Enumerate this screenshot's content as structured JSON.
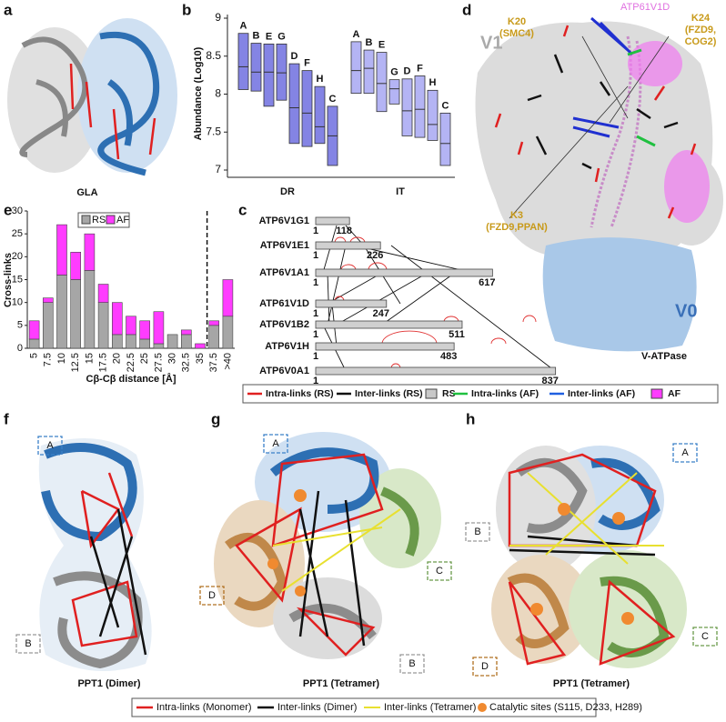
{
  "panel_labels": [
    "a",
    "b",
    "c",
    "d",
    "e",
    "f",
    "g",
    "h"
  ],
  "panel_a": {
    "caption": "GLA"
  },
  "chart_data": [
    {
      "type": "box",
      "ylabel": "Abundance (Log10)",
      "ylim": [
        7,
        9
      ],
      "yticks": [
        7,
        7.5,
        8,
        8.5,
        9
      ],
      "groups": [
        {
          "label": "DR",
          "color": "#8484e4",
          "boxes": [
            {
              "label": "A",
              "high": 8.8,
              "median": 8.36,
              "low": 8.06
            },
            {
              "label": "B",
              "high": 8.67,
              "median": 8.29,
              "low": 8.04
            },
            {
              "label": "E",
              "high": 8.66,
              "median": 8.29,
              "low": 7.84
            },
            {
              "label": "G",
              "high": 8.66,
              "median": 8.28,
              "low": 7.92
            },
            {
              "label": "D",
              "high": 8.4,
              "median": 7.82,
              "low": 7.35
            },
            {
              "label": "F",
              "high": 8.31,
              "median": 7.75,
              "low": 7.31
            },
            {
              "label": "H",
              "high": 8.1,
              "median": 7.57,
              "low": 7.35
            },
            {
              "label": "C",
              "high": 7.84,
              "median": 7.45,
              "low": 7.06
            }
          ]
        },
        {
          "label": "IT",
          "color": "#b4b4f4",
          "boxes": [
            {
              "label": "A",
              "high": 8.69,
              "median": 8.31,
              "low": 8.01
            },
            {
              "label": "B",
              "high": 8.58,
              "median": 8.34,
              "low": 8.01
            },
            {
              "label": "E",
              "high": 8.55,
              "median": 8.14,
              "low": 7.77
            },
            {
              "label": "G",
              "high": 8.19,
              "median": 8.07,
              "low": 7.87
            },
            {
              "label": "D",
              "high": 8.2,
              "median": 7.78,
              "low": 7.45
            },
            {
              "label": "F",
              "high": 8.24,
              "median": 7.8,
              "low": 7.43
            },
            {
              "label": "H",
              "high": 8.05,
              "median": 7.6,
              "low": 7.39
            },
            {
              "label": "C",
              "high": 7.75,
              "median": 7.35,
              "low": 7.06
            }
          ]
        }
      ]
    },
    {
      "type": "stacked-bar",
      "xlabel": "Cβ-Cβ distance [Å]",
      "ylabel": "Cross-links",
      "categories": [
        "5",
        "7.5",
        "10",
        "12.5",
        "15",
        "17.5",
        "20",
        "22.5",
        "25",
        "27.5",
        "30",
        "32.5",
        "35",
        "37.5",
        ">40"
      ],
      "series": [
        {
          "name": "RS",
          "color": "#a6a6a6",
          "values": [
            2,
            10,
            16,
            15,
            17,
            10,
            3,
            3,
            2,
            1,
            3,
            3,
            0,
            5,
            7
          ]
        },
        {
          "name": "AF",
          "color": "#ff3cff",
          "values": [
            4,
            1,
            11,
            6,
            8,
            4,
            7,
            4,
            4,
            7,
            0,
            1,
            1,
            1,
            8
          ]
        }
      ],
      "ylim": [
        0,
        30
      ],
      "yticks": [
        0,
        5,
        10,
        15,
        20,
        25,
        30
      ],
      "legend": "upper-left"
    }
  ],
  "panel_c": {
    "proteins": [
      {
        "name": "ATP6V1G1",
        "start": 1,
        "length": 118
      },
      {
        "name": "ATP6V1E1",
        "start": 1,
        "length": 226
      },
      {
        "name": "ATP6V1A1",
        "start": 1,
        "length": 617
      },
      {
        "name": "ATP61V1D",
        "start": 1,
        "length": 247
      },
      {
        "name": "ATP6V1B2",
        "start": 1,
        "length": 511
      },
      {
        "name": "ATP6V1H",
        "start": 1,
        "length": 483
      },
      {
        "name": "ATP6V0A1",
        "start": 1,
        "length": 837
      }
    ],
    "legend": [
      "Intra-links (RS)",
      "Inter-links (RS)",
      "RS",
      "Intra-links (AF)",
      "Inter-links (AF)",
      "AF"
    ]
  },
  "panel_d": {
    "v1": "V1",
    "v0": "V0",
    "caption": "V-ATPase",
    "subunit": "ATP61V1D",
    "k20": [
      "K20",
      "(SMC4)"
    ],
    "k24": [
      "K24",
      "(FZD9,",
      "COG2)"
    ],
    "k3": [
      "K3",
      "(FZD9,PPAN)"
    ]
  },
  "panel_f": {
    "subunits": [
      "A",
      "B"
    ],
    "caption": "PPT1 (Dimer)"
  },
  "panel_g": {
    "subunits": [
      "A",
      "C",
      "D",
      "B"
    ],
    "caption": "PPT1 (Tetramer)"
  },
  "panel_h": {
    "subunits": [
      "A",
      "B",
      "C",
      "D"
    ],
    "caption": "PPT1 (Tetramer)"
  },
  "bottom_legend": [
    "Intra-links (Monomer)",
    "Inter-links (Dimer)",
    "Inter-links (Tetramer)",
    "Catalytic sites (S115, D233, H289)"
  ]
}
